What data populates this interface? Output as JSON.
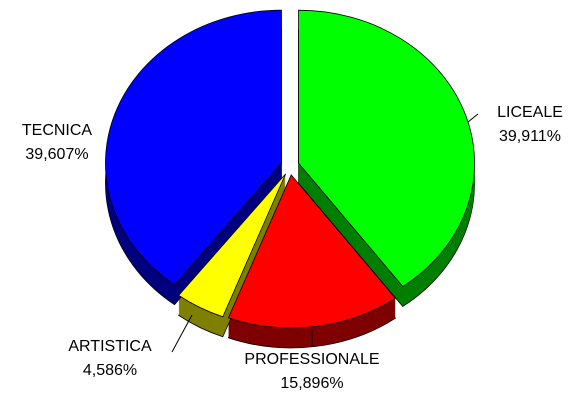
{
  "chart_data": {
    "type": "pie",
    "categories": [
      "LICEALE",
      "PROFESSIONALE",
      "ARTISTICA",
      "TECNICA"
    ],
    "values": [
      39.911,
      15.896,
      4.586,
      39.607
    ],
    "value_labels": [
      "39,911%",
      "15,896%",
      "4,586%",
      "39,607%"
    ],
    "colors": [
      "#00ff00",
      "#ff0000",
      "#ffff00",
      "#0000ff"
    ],
    "side_colors": [
      "#007f00",
      "#7f0000",
      "#7f7f00",
      "#00007f"
    ]
  }
}
